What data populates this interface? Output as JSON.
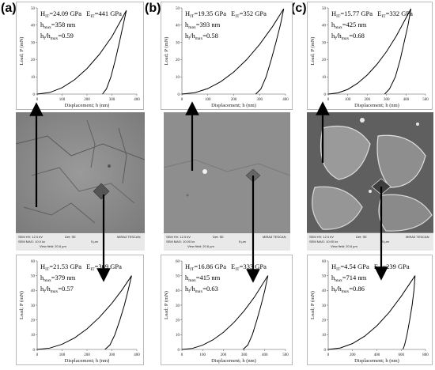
{
  "panels": [
    {
      "letter": "(a)",
      "sem_stats": [
        "SEM HV: 12.0 kV",
        "SEM MAG: 10.0 kx",
        "View field: 20.6 µm",
        "Det: SE",
        "5 µm",
        "MIRA3 TESCAN"
      ]
    },
    {
      "letter": "(b)",
      "sem_stats": [
        "SEM HV: 12.0 kV",
        "SEM MAG: 10.00 kx",
        "View field: 20.6 µm",
        "Det: SE",
        "5 µm",
        "MIRA3 TESCAN"
      ]
    },
    {
      "letter": "(c)",
      "sem_stats": [
        "SEM HV: 12.0 kV",
        "SEM MAG: 10.00 kx",
        "View field: 20.6 µm",
        "Det: SE",
        "5 µm",
        "MIRA3 TESCAN"
      ]
    }
  ],
  "chart_data": [
    {
      "id": "a-top",
      "type": "line",
      "xlabel": "Displacement; h (nm)",
      "ylabel": "Load; P (mN)",
      "xlim": [
        0,
        400
      ],
      "ylim": [
        0,
        50
      ],
      "xticks": [
        0,
        100,
        200,
        300,
        400
      ],
      "yticks": [
        0,
        10,
        20,
        30,
        40,
        50
      ],
      "annotations": {
        "line1_a": "H",
        "line1_a_sub": "IT",
        "line1_a_val": "=24.09 GPa",
        "line1_b": "E",
        "line1_b_sub": "IT",
        "line1_b_val": "=441 GPa",
        "line2": "h",
        "line2_sub": "max",
        "line2_val": "=358 nm",
        "line3": "h",
        "line3_sub": "f",
        "line3_mid": "/h",
        "line3_sub2": "max",
        "line3_val": "=0.59"
      },
      "series": [
        {
          "values": [
            [
              0,
              0
            ],
            [
              50,
              0.9
            ],
            [
              100,
              3.7
            ],
            [
              150,
              8.3
            ],
            [
              200,
              14.8
            ],
            [
              250,
              23.1
            ],
            [
              300,
              33.3
            ],
            [
              358,
              48.5
            ]
          ]
        },
        {
          "values": [
            [
              358,
              48.5
            ],
            [
              345,
              40
            ],
            [
              330,
              30
            ],
            [
              314,
              20
            ],
            [
              296,
              10
            ],
            [
              278,
              3
            ],
            [
              262,
              0
            ]
          ]
        }
      ],
      "grid": false
    },
    {
      "id": "b-top",
      "type": "line",
      "xlabel": "Displacement; h (nm)",
      "ylabel": "Load; P (mN)",
      "xlim": [
        0,
        400
      ],
      "ylim": [
        0,
        50
      ],
      "xticks": [
        0,
        100,
        200,
        300,
        400
      ],
      "yticks": [
        0,
        10,
        20,
        30,
        40,
        50
      ],
      "annotations": {
        "line1_a": "H",
        "line1_a_sub": "IT",
        "line1_a_val": "=19.35 GPa",
        "line1_b": "E",
        "line1_b_sub": "IT",
        "line1_b_val": "=352 GPa",
        "line2": "h",
        "line2_sub": "max",
        "line2_val": "=393 nm",
        "line3": "h",
        "line3_sub": "f",
        "line3_mid": "/h",
        "line3_sub2": "max",
        "line3_val": "=0.58"
      },
      "series": [
        {
          "values": [
            [
              0,
              0
            ],
            [
              50,
              0.8
            ],
            [
              100,
              3.2
            ],
            [
              150,
              7.2
            ],
            [
              200,
              12.8
            ],
            [
              250,
              20
            ],
            [
              300,
              28.8
            ],
            [
              350,
              39.2
            ],
            [
              393,
              49.5
            ]
          ]
        },
        {
          "values": [
            [
              393,
              49.5
            ],
            [
              380,
              40
            ],
            [
              363,
              30
            ],
            [
              345,
              20
            ],
            [
              325,
              10
            ],
            [
              305,
              3
            ],
            [
              285,
              0
            ]
          ]
        }
      ],
      "grid": false
    },
    {
      "id": "c-top",
      "type": "line",
      "xlabel": "Displacement; h (nm)",
      "ylabel": "Load; P (mN)",
      "xlim": [
        0,
        500
      ],
      "ylim": [
        0,
        50
      ],
      "xticks": [
        0,
        100,
        200,
        300,
        400,
        500
      ],
      "yticks": [
        0,
        10,
        20,
        30,
        40,
        50
      ],
      "annotations": {
        "line1_a": "H",
        "line1_a_sub": "IT",
        "line1_a_val": "=15.77 GPa",
        "line1_b": "E",
        "line1_b_sub": "IT",
        "line1_b_val": "=332 GPa",
        "line2": "h",
        "line2_sub": "max",
        "line2_val": "=425 nm",
        "line3": "h",
        "line3_sub": "f",
        "line3_mid": "/h",
        "line3_sub2": "max",
        "line3_val": "=0.68"
      },
      "series": [
        {
          "values": [
            [
              0,
              0
            ],
            [
              50,
              0.7
            ],
            [
              100,
              2.7
            ],
            [
              150,
              6.2
            ],
            [
              200,
              11
            ],
            [
              250,
              17.2
            ],
            [
              300,
              24.7
            ],
            [
              350,
              33.7
            ],
            [
              425,
              49.5
            ]
          ]
        },
        {
          "values": [
            [
              425,
              49.5
            ],
            [
              410,
              40
            ],
            [
              390,
              30
            ],
            [
              370,
              20
            ],
            [
              345,
              10
            ],
            [
              315,
              3
            ],
            [
              290,
              0
            ]
          ]
        }
      ],
      "grid": false
    },
    {
      "id": "a-bottom",
      "type": "line",
      "xlabel": "Displacement; h (nm)",
      "ylabel": "Load; P (mN)",
      "xlim": [
        0,
        400
      ],
      "ylim": [
        0,
        60
      ],
      "xticks": [
        0,
        100,
        200,
        300,
        400
      ],
      "yticks": [
        0,
        10,
        20,
        30,
        40,
        50,
        60
      ],
      "annotations": {
        "line1_a": "H",
        "line1_a_sub": "IT",
        "line1_a_val": "=21.53 GPa",
        "line1_b": "E",
        "line1_b_sub": "IT",
        "line1_b_val": "=369 GPa",
        "line2": "h",
        "line2_sub": "max",
        "line2_val": "=379 nm",
        "line3": "h",
        "line3_sub": "f",
        "line3_mid": "/h",
        "line3_sub2": "max",
        "line3_val": "=0.57"
      },
      "series": [
        {
          "values": [
            [
              0,
              0
            ],
            [
              50,
              0.9
            ],
            [
              100,
              3.5
            ],
            [
              150,
              7.8
            ],
            [
              200,
              13.9
            ],
            [
              250,
              21.8
            ],
            [
              300,
              31.3
            ],
            [
              340,
              40.2
            ],
            [
              379,
              50
            ]
          ]
        },
        {
          "values": [
            [
              379,
              50
            ],
            [
              365,
              40
            ],
            [
              350,
              30
            ],
            [
              332,
              20
            ],
            [
              312,
              10
            ],
            [
              292,
              3
            ],
            [
              272,
              0
            ]
          ]
        }
      ],
      "grid": false
    },
    {
      "id": "b-bottom",
      "type": "line",
      "xlabel": "Displacement; h (nm)",
      "ylabel": "Load; P (mN)",
      "xlim": [
        0,
        500
      ],
      "ylim": [
        0,
        60
      ],
      "xticks": [
        0,
        100,
        200,
        300,
        400,
        500
      ],
      "yticks": [
        0,
        10,
        20,
        30,
        40,
        50,
        60
      ],
      "annotations": {
        "line1_a": "H",
        "line1_a_sub": "IT",
        "line1_a_val": "=16.86 GPa",
        "line1_b": "E",
        "line1_b_sub": "IT",
        "line1_b_val": "=333 GPa",
        "line2": "h",
        "line2_sub": "max",
        "line2_val": "=415 nm",
        "line3": "h",
        "line3_sub": "f",
        "line3_mid": "/h",
        "line3_sub2": "max",
        "line3_val": "=0.63"
      },
      "series": [
        {
          "values": [
            [
              0,
              0
            ],
            [
              50,
              0.7
            ],
            [
              100,
              2.9
            ],
            [
              150,
              6.5
            ],
            [
              200,
              11.6
            ],
            [
              250,
              18.1
            ],
            [
              300,
              26.1
            ],
            [
              350,
              35.5
            ],
            [
              415,
              50
            ]
          ]
        },
        {
          "values": [
            [
              415,
              50
            ],
            [
              400,
              40
            ],
            [
              382,
              30
            ],
            [
              362,
              20
            ],
            [
              340,
              10
            ],
            [
              318,
              3
            ],
            [
              295,
              0
            ]
          ]
        }
      ],
      "grid": false
    },
    {
      "id": "c-bottom",
      "type": "line",
      "xlabel": "Displacement; h (nm)",
      "ylabel": "Load; P (mN)",
      "xlim": [
        0,
        800
      ],
      "ylim": [
        0,
        60
      ],
      "xticks": [
        0,
        200,
        400,
        600,
        800
      ],
      "yticks": [
        0,
        10,
        20,
        30,
        40,
        50,
        60
      ],
      "annotations": {
        "line1_a": "H",
        "line1_a_sub": "IT",
        "line1_a_val": "=4.54 GPa",
        "line1_b": "E",
        "line1_b_sub": "IT",
        "line1_b_val": "=239 GPa",
        "line2": "h",
        "line2_sub": "max",
        "line2_val": "=714 nm",
        "line3": "h",
        "line3_sub": "f",
        "line3_mid": "/h",
        "line3_sub2": "max",
        "line3_val": "=0.86"
      },
      "series": [
        {
          "values": [
            [
              0,
              0
            ],
            [
              100,
              1
            ],
            [
              200,
              4
            ],
            [
              300,
              9
            ],
            [
              400,
              16
            ],
            [
              500,
              25
            ],
            [
              600,
              36
            ],
            [
              714,
              50
            ]
          ]
        },
        {
          "values": [
            [
              714,
              50
            ],
            [
              705,
              40
            ],
            [
              690,
              30
            ],
            [
              670,
              20
            ],
            [
              648,
              10
            ],
            [
              628,
              3
            ],
            [
              614,
              0
            ]
          ]
        }
      ],
      "grid": false
    }
  ]
}
